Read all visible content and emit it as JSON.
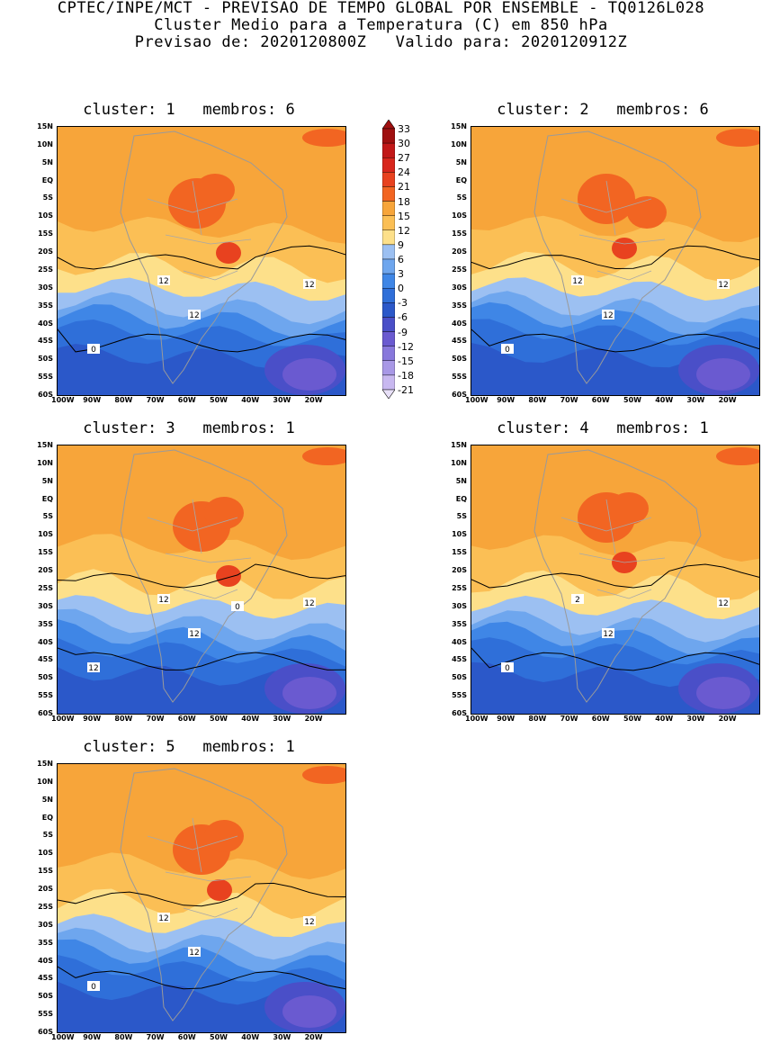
{
  "header": {
    "line1": "CPTEC/INPE/MCT - PREVISAO DE TEMPO GLOBAL POR ENSEMBLE - TQ0126L028",
    "line2": "Cluster Medio para a Temperatura (C) em 850 hPa",
    "line3": "Previsao de: 2020120800Z   Valido para: 2020120912Z"
  },
  "lat_labels": [
    "15N",
    "10N",
    "5N",
    "EQ",
    "5S",
    "10S",
    "15S",
    "20S",
    "25S",
    "30S",
    "35S",
    "40S",
    "45S",
    "50S",
    "55S",
    "60S"
  ],
  "lon_labels": [
    "100W",
    "90W",
    "80W",
    "70W",
    "60W",
    "50W",
    "40W",
    "30W",
    "20W"
  ],
  "colorbar": {
    "labels": [
      "33",
      "30",
      "27",
      "24",
      "21",
      "18",
      "15",
      "12",
      "9",
      "6",
      "3",
      "0",
      "-3",
      "-6",
      "-9",
      "-12",
      "-15",
      "-18",
      "-21"
    ],
    "colors": [
      "#a01010",
      "#c21818",
      "#d8261c",
      "#e8421f",
      "#f26522",
      "#f7a53a",
      "#fbbf55",
      "#fde08a",
      "#9cc0f2",
      "#6ea6ee",
      "#3f86e6",
      "#2f6fd9",
      "#2b58c9",
      "#4a4fc8",
      "#6a5ad0",
      "#8878dc",
      "#a898e6",
      "#c8b8f0"
    ]
  },
  "panels": [
    {
      "title": "cluster: 1   membros: 6",
      "contour_labels": [
        "12",
        "12",
        "12",
        "0"
      ]
    },
    {
      "title": "cluster: 2   membros: 6",
      "contour_labels": [
        "12",
        "12",
        "12",
        "0"
      ]
    },
    {
      "title": "cluster: 3   membros: 1",
      "contour_labels": [
        "12",
        "12",
        "12",
        "12",
        "0"
      ]
    },
    {
      "title": "cluster: 4   membros: 1",
      "contour_labels": [
        "2",
        "12",
        "12",
        "0"
      ]
    },
    {
      "title": "cluster: 5   membros: 1",
      "contour_labels": [
        "12",
        "12",
        "12",
        "0"
      ]
    }
  ]
}
